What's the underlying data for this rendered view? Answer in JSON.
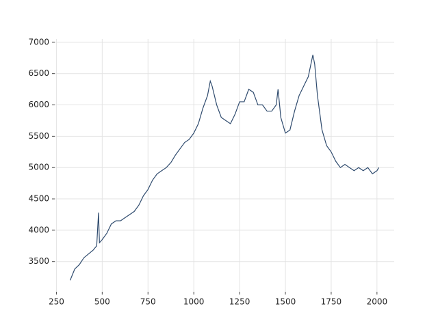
{
  "chart_data": {
    "type": "line",
    "x": [
      325,
      350,
      375,
      400,
      425,
      450,
      470,
      480,
      485,
      500,
      525,
      550,
      575,
      600,
      625,
      650,
      675,
      700,
      725,
      750,
      775,
      800,
      825,
      850,
      875,
      900,
      925,
      950,
      975,
      1000,
      1025,
      1050,
      1075,
      1090,
      1100,
      1125,
      1150,
      1175,
      1200,
      1225,
      1250,
      1275,
      1300,
      1325,
      1350,
      1375,
      1400,
      1425,
      1450,
      1460,
      1475,
      1500,
      1525,
      1550,
      1575,
      1600,
      1625,
      1650,
      1660,
      1675,
      1700,
      1725,
      1750,
      1775,
      1800,
      1825,
      1850,
      1875,
      1900,
      1925,
      1950,
      1975,
      2000,
      2010
    ],
    "series": [
      {
        "color": "#2f4b6e",
        "values": [
          3200,
          3380,
          3450,
          3560,
          3620,
          3680,
          3750,
          4280,
          3800,
          3850,
          3950,
          4100,
          4150,
          4150,
          4200,
          4250,
          4300,
          4400,
          4550,
          4650,
          4800,
          4900,
          4950,
          5000,
          5080,
          5200,
          5300,
          5400,
          5450,
          5550,
          5700,
          5950,
          6150,
          6380,
          6300,
          6000,
          5800,
          5750,
          5700,
          5850,
          6050,
          6050,
          6250,
          6200,
          6000,
          6000,
          5900,
          5900,
          6000,
          6250,
          5800,
          5550,
          5600,
          5900,
          6150,
          6300,
          6450,
          6800,
          6650,
          6150,
          5600,
          5350,
          5250,
          5100,
          5000,
          5050,
          5000,
          4950,
          5000,
          4950,
          5000,
          4900,
          4950,
          5000
        ]
      }
    ],
    "xlim": [
      241,
      2094
    ],
    "ylim": [
      3017,
      7053
    ],
    "xticks": [
      250,
      500,
      750,
      1000,
      1250,
      1500,
      1750,
      2000
    ],
    "yticks": [
      3500,
      4000,
      4500,
      5000,
      5500,
      6000,
      6500,
      7000
    ],
    "grid": true
  }
}
